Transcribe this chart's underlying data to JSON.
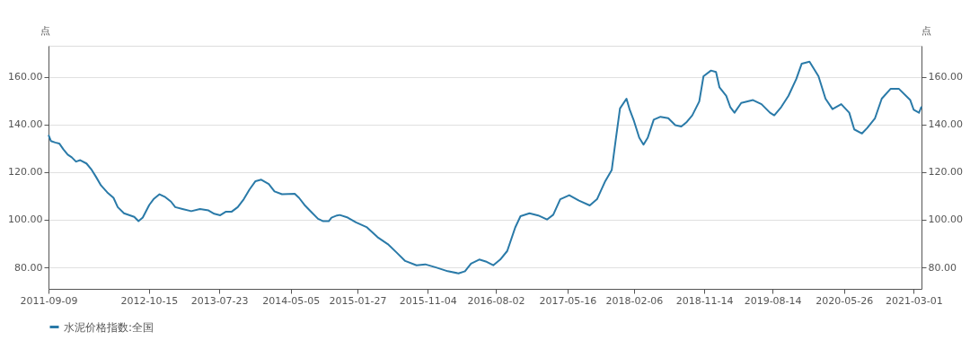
{
  "chart_data": {
    "type": "line",
    "ylabel": "点",
    "y2label": "点",
    "legend": "bottom",
    "grid": "y",
    "marker": "none",
    "line_style": "solid",
    "xlim": [
      "2011-09-09",
      "2021-04-01"
    ],
    "xticks": [
      "2011-09-09",
      "2012-10-15",
      "2013-07-23",
      "2014-05-05",
      "2015-01-27",
      "2015-11-04",
      "2016-08-02",
      "2017-05-16",
      "2018-02-06",
      "2018-11-14",
      "2019-08-14",
      "2020-05-26",
      "2021-03-01"
    ],
    "ylim": [
      71,
      173
    ],
    "yticks": [
      {
        "value": 80,
        "label": "80.00"
      },
      {
        "value": 100,
        "label": "100.00"
      },
      {
        "value": 120,
        "label": "120.00"
      },
      {
        "value": 140,
        "label": "140.00"
      },
      {
        "value": 160,
        "label": "160.00"
      }
    ],
    "y2lim": [
      71,
      173
    ],
    "y2ticks": [
      {
        "value": 80,
        "label": "80.00"
      },
      {
        "value": 100,
        "label": "100.00"
      },
      {
        "value": 120,
        "label": "120.00"
      },
      {
        "value": 140,
        "label": "140.00"
      },
      {
        "value": 160,
        "label": "160.00"
      }
    ],
    "x": [
      "2011-09-09",
      "2011-09-19",
      "2011-10-06",
      "2011-10-22",
      "2011-11-08",
      "2011-11-25",
      "2011-12-11",
      "2011-12-28",
      "2012-01-14",
      "2012-02-08",
      "2012-02-29",
      "2012-03-17",
      "2012-04-06",
      "2012-05-01",
      "2012-05-26",
      "2012-06-12",
      "2012-07-07",
      "2012-08-17",
      "2012-09-03",
      "2012-09-20",
      "2012-10-16",
      "2012-11-02",
      "2012-11-26",
      "2012-12-19",
      "2013-01-11",
      "2013-01-28",
      "2013-02-26",
      "2013-04-02",
      "2013-05-07",
      "2013-06-10",
      "2013-07-03",
      "2013-07-27",
      "2013-08-19",
      "2013-09-11",
      "2013-10-05",
      "2013-10-29",
      "2013-11-21",
      "2013-12-15",
      "2014-01-07",
      "2014-02-06",
      "2014-03-01",
      "2014-03-31",
      "2014-05-21",
      "2014-06-07",
      "2014-06-29",
      "2014-07-26",
      "2014-08-22",
      "2014-09-12",
      "2014-10-04",
      "2014-10-15",
      "2014-11-06",
      "2014-11-17",
      "2014-12-19",
      "2015-01-21",
      "2015-03-06",
      "2015-04-17",
      "2015-05-28",
      "2015-07-02",
      "2015-08-06",
      "2015-09-20",
      "2015-10-25",
      "2015-12-07",
      "2016-01-23",
      "2016-03-06",
      "2016-04-01",
      "2016-04-25",
      "2016-05-28",
      "2016-06-23",
      "2016-07-23",
      "2016-08-20",
      "2016-09-17",
      "2016-10-19",
      "2016-11-09",
      "2016-12-15",
      "2017-01-19",
      "2017-02-23",
      "2017-03-20",
      "2017-04-17",
      "2017-05-23",
      "2017-07-01",
      "2017-08-13",
      "2017-09-11",
      "2017-10-14",
      "2017-11-09",
      "2017-11-26",
      "2017-12-12",
      "2018-01-07",
      "2018-01-20",
      "2018-02-06",
      "2018-02-27",
      "2018-03-16",
      "2018-04-02",
      "2018-04-26",
      "2018-05-23",
      "2018-06-23",
      "2018-07-21",
      "2018-08-14",
      "2018-09-03",
      "2018-09-27",
      "2018-10-25",
      "2018-11-11",
      "2018-12-11",
      "2018-12-31",
      "2019-01-14",
      "2019-02-10",
      "2019-02-26",
      "2019-03-15",
      "2019-04-11",
      "2019-05-28",
      "2019-07-01",
      "2019-08-04",
      "2019-08-21",
      "2019-09-18",
      "2019-10-17",
      "2019-11-17",
      "2019-12-09",
      "2020-01-09",
      "2020-02-14",
      "2020-03-13",
      "2020-04-10",
      "2020-05-15",
      "2020-06-16",
      "2020-07-06",
      "2020-08-06",
      "2020-08-27",
      "2020-09-27",
      "2020-10-24",
      "2020-11-28",
      "2021-01-01",
      "2021-02-15",
      "2021-03-01",
      "2021-03-22",
      "2021-04-01"
    ],
    "series": [
      {
        "name": "水泥价格指数:全国",
        "color": "#2a7aa8",
        "values": [
          135.6,
          133.0,
          132.4,
          132.0,
          129.5,
          127.3,
          126.2,
          124.4,
          125.0,
          123.6,
          120.9,
          118.0,
          114.4,
          111.5,
          109.2,
          105.3,
          102.7,
          101.2,
          99.4,
          100.9,
          106.2,
          108.6,
          110.7,
          109.5,
          107.6,
          105.3,
          104.5,
          103.6,
          104.5,
          103.9,
          102.5,
          101.9,
          103.4,
          103.4,
          105.3,
          108.6,
          112.7,
          116.2,
          116.8,
          115.0,
          111.9,
          110.7,
          110.9,
          109.2,
          106.2,
          103.3,
          100.4,
          99.4,
          99.4,
          100.9,
          101.8,
          102.0,
          100.9,
          98.9,
          96.8,
          92.7,
          89.8,
          86.3,
          82.7,
          80.9,
          81.3,
          80.0,
          78.4,
          77.5,
          78.4,
          81.6,
          83.3,
          82.5,
          80.9,
          83.3,
          86.9,
          96.8,
          101.5,
          102.7,
          101.8,
          100.1,
          102.1,
          108.6,
          110.3,
          108.0,
          106.0,
          108.6,
          116.2,
          120.9,
          134.4,
          146.7,
          150.8,
          146.1,
          141.4,
          134.4,
          131.5,
          134.4,
          142.0,
          143.2,
          142.6,
          139.7,
          139.1,
          140.8,
          143.8,
          149.6,
          160.2,
          162.6,
          162.0,
          155.5,
          152.0,
          147.3,
          144.9,
          149.0,
          150.2,
          148.5,
          144.9,
          143.8,
          147.3,
          152.0,
          159.0,
          165.5,
          166.3,
          160.2,
          150.8,
          146.4,
          148.5,
          144.9,
          137.9,
          136.2,
          138.5,
          142.6,
          150.8,
          154.9,
          154.9,
          150.2,
          146.1,
          144.9,
          147.5
        ]
      }
    ]
  }
}
